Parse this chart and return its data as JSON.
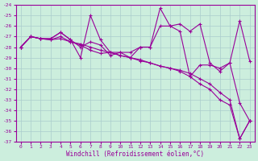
{
  "xlabel": "Windchill (Refroidissement éolien,°C)",
  "bg_color": "#cceedd",
  "grid_color": "#aacccc",
  "line_color": "#990099",
  "xlim": [
    -0.5,
    23.5
  ],
  "ylim": [
    -37,
    -24
  ],
  "xticks": [
    0,
    1,
    2,
    3,
    4,
    5,
    6,
    7,
    8,
    9,
    10,
    11,
    12,
    13,
    14,
    15,
    16,
    17,
    18,
    19,
    20,
    21,
    22,
    23
  ],
  "yticks": [
    -24,
    -25,
    -26,
    -27,
    -28,
    -29,
    -30,
    -31,
    -32,
    -33,
    -34,
    -35,
    -36,
    -37
  ],
  "curve1": [
    -28.0,
    -27.0,
    -27.2,
    -27.2,
    -26.6,
    -27.3,
    -29.0,
    -25.0,
    -27.3,
    -28.5,
    -28.5,
    -28.5,
    -28.0,
    -28.0,
    -24.3,
    -26.0,
    -25.8,
    -26.5,
    -25.8,
    -29.5,
    -30.3,
    -29.5,
    -25.5,
    -29.3
  ],
  "curve2": [
    -28.0,
    -27.0,
    -27.2,
    -27.2,
    -26.6,
    -27.3,
    -28.0,
    -27.5,
    -27.8,
    -28.8,
    -28.5,
    -29.0,
    -28.0,
    -28.0,
    -26.0,
    -26.0,
    -26.5,
    -30.8,
    -29.7,
    -29.7,
    -30.0,
    -29.5,
    -33.3,
    -35.0
  ],
  "curve3": [
    -28.0,
    -27.0,
    -27.2,
    -27.3,
    -27.0,
    -27.5,
    -27.8,
    -28.3,
    -28.6,
    -28.5,
    -28.8,
    -29.0,
    -29.3,
    -29.5,
    -29.8,
    -30.0,
    -30.3,
    -30.8,
    -31.5,
    -32.0,
    -33.0,
    -33.5,
    -36.7,
    -35.0
  ],
  "curve4": [
    -28.0,
    -27.0,
    -27.2,
    -27.3,
    -27.2,
    -27.5,
    -27.7,
    -28.0,
    -28.3,
    -28.5,
    -28.8,
    -29.0,
    -29.2,
    -29.5,
    -29.8,
    -30.0,
    -30.2,
    -30.5,
    -31.0,
    -31.5,
    -32.3,
    -33.0,
    -36.7,
    -35.0
  ]
}
